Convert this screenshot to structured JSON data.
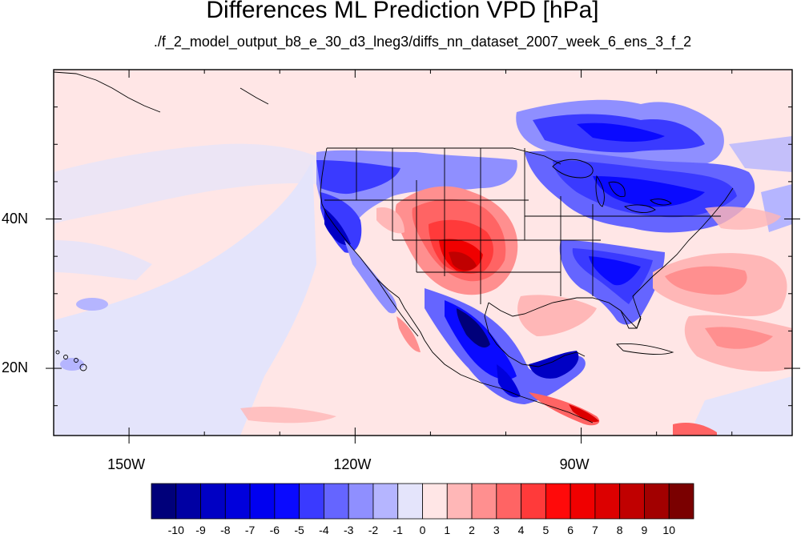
{
  "title": "Differences ML Prediction VPD [hPa]",
  "subtitle": "./f_2_model_output_b8_e_30_d3_lneg3/diffs_nn_dataset_2007_week_6_ens_3_f_2",
  "map": {
    "projection": "cylindrical equidistant",
    "lon_range": [
      -160,
      -62
    ],
    "lat_range": [
      11,
      60
    ],
    "lon_ticks": [
      {
        "lon": -150,
        "label": "150W"
      },
      {
        "lon": -120,
        "label": "120W"
      },
      {
        "lon": -90,
        "label": "90W"
      }
    ],
    "lat_ticks": [
      {
        "lat": 40,
        "label": "40N"
      },
      {
        "lat": 20,
        "label": "20N"
      }
    ],
    "background_value": "0 to 1 (light pink) over ocean, -1 to 0 (light lavender) over eastern Pacific"
  },
  "colorbar": {
    "levels": [
      "-10",
      "-9",
      "-8",
      "-7",
      "-6",
      "-5",
      "-4",
      "-3",
      "-2",
      "-1",
      "0",
      "1",
      "2",
      "3",
      "4",
      "5",
      "6",
      "7",
      "8",
      "9",
      "10"
    ],
    "colors": [
      "#00007a",
      "#0000a3",
      "#0000c4",
      "#0000dc",
      "#0000f0",
      "#0a0aff",
      "#3a3aff",
      "#6565ff",
      "#8f8fff",
      "#b5b5ff",
      "#e4e4fb",
      "#ffe6e6",
      "#ffb7b7",
      "#ff8f8f",
      "#ff6464",
      "#ff3a3a",
      "#ff0a0a",
      "#f00000",
      "#dc0000",
      "#c00000",
      "#a20000",
      "#7a0000"
    ]
  }
}
